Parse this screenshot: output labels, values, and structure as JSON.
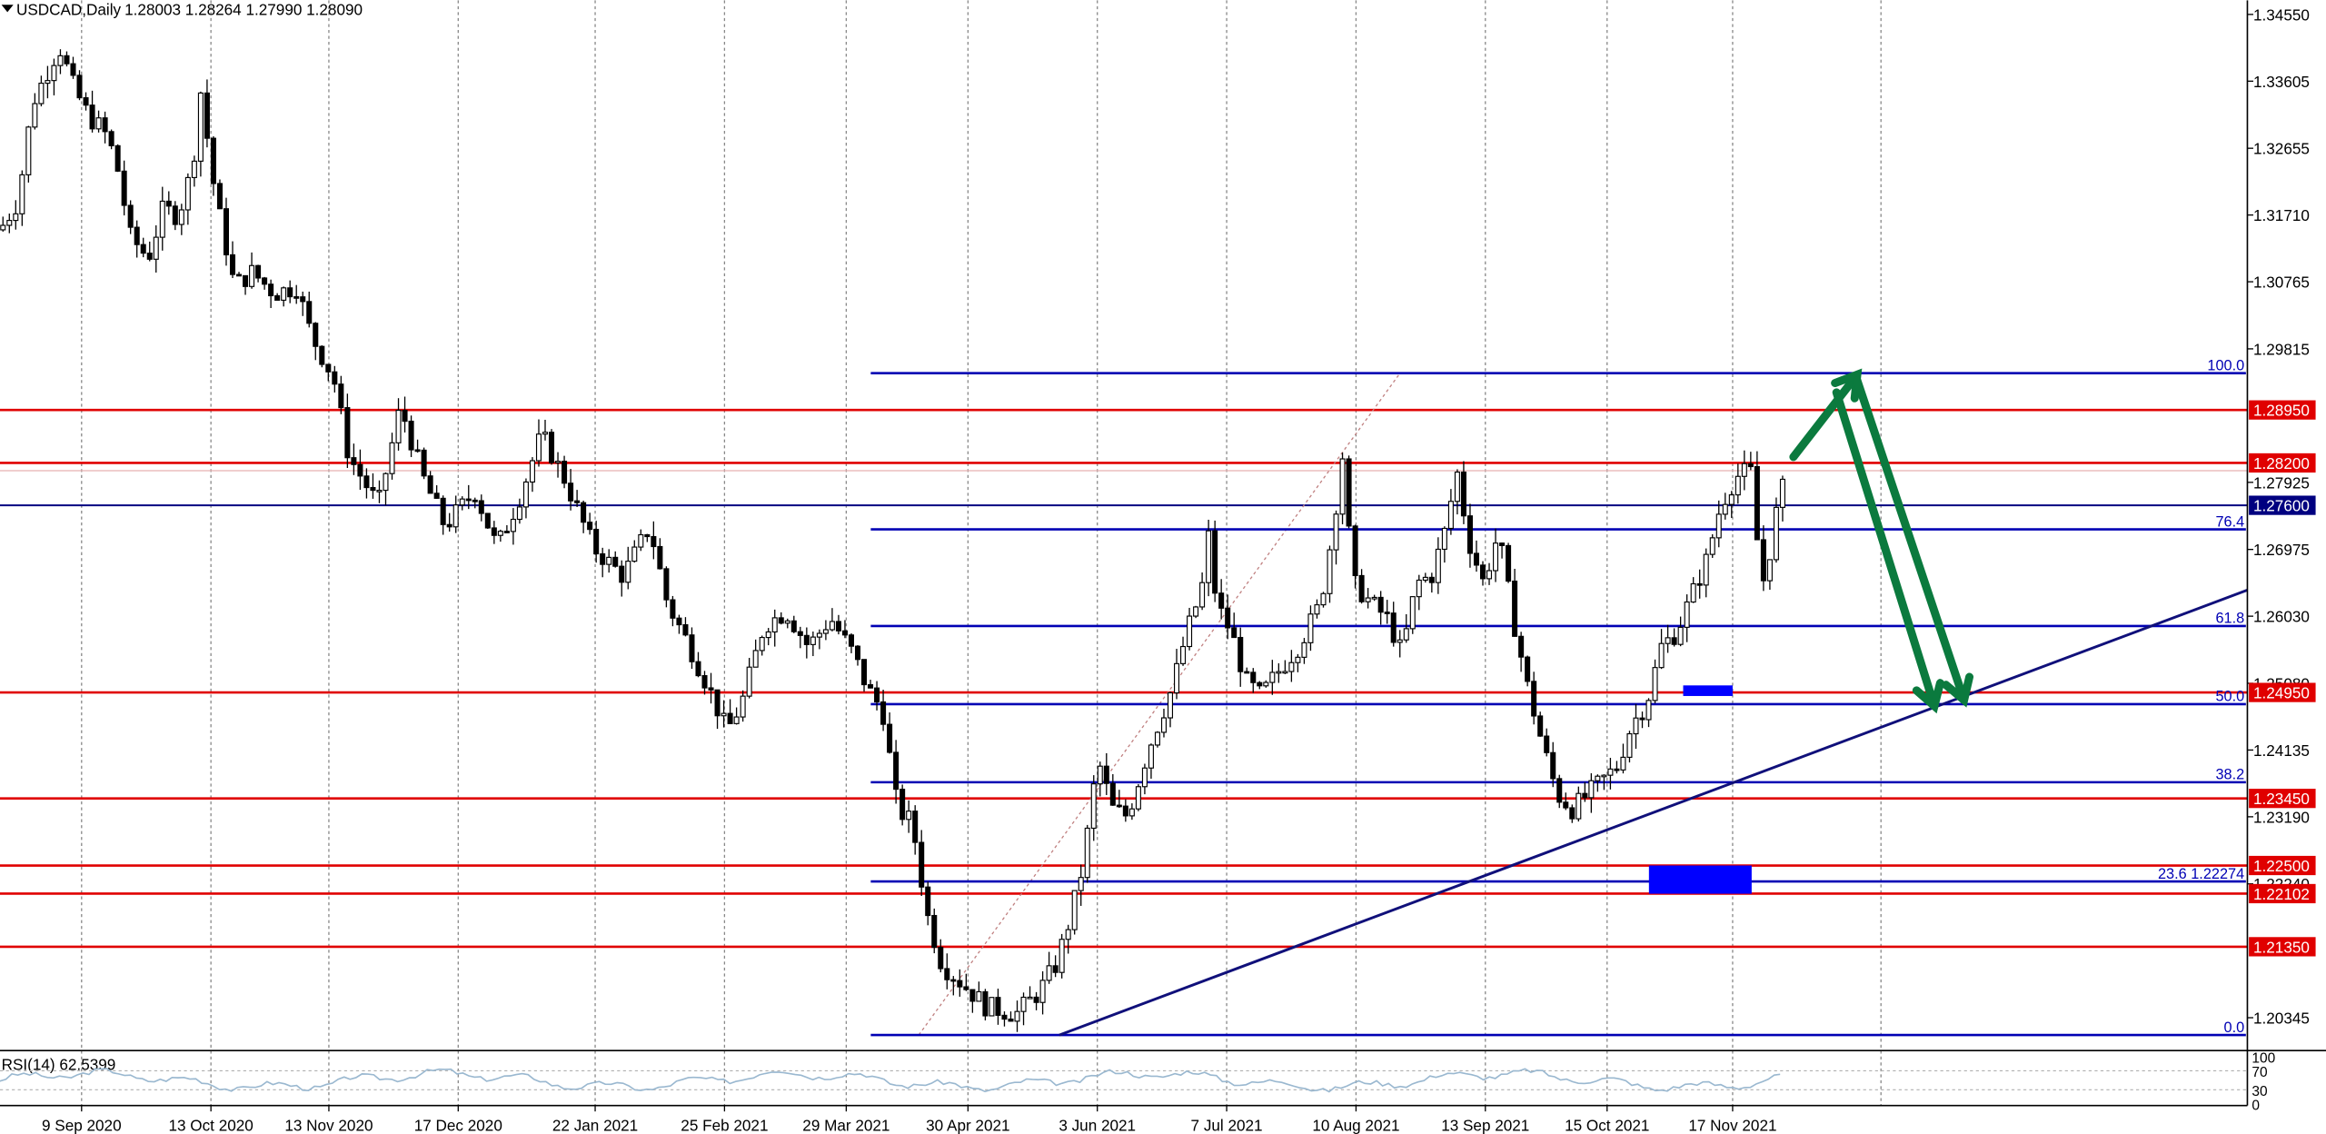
{
  "header": {
    "dropdown_icon": "triangle-down-icon",
    "symbol": "USDCAD,Daily",
    "ohlc": "1.28003 1.28264 1.27990 1.28090"
  },
  "rsi": {
    "label": "RSI(14) 62.5399",
    "levels": [
      "100",
      "70",
      "30",
      "0"
    ],
    "level_values": [
      100,
      70,
      30,
      0
    ],
    "current": 62.54
  },
  "colors": {
    "red_level": "#e00000",
    "blue_level": "#0000b4",
    "navy": "#000080",
    "trendline": "#10107a",
    "arrow_green": "#0b7a3e",
    "rsi_line": "#9ab8d0",
    "candle": "#000000",
    "zone_blue": "#0000ff",
    "grid": "#888888",
    "fib_diag": "#c08080"
  },
  "chart_data": {
    "type": "candlestick",
    "symbol": "USDCAD",
    "timeframe": "Daily",
    "ylim": [
      1.199,
      1.3475
    ],
    "y_ticks": [
      "1.34550",
      "1.33605",
      "1.32655",
      "1.31710",
      "1.30765",
      "1.29815",
      "1.27925",
      "1.26975",
      "1.26030",
      "1.25080",
      "1.24135",
      "1.23190",
      "1.22240",
      "1.20345"
    ],
    "x_dates": [
      "9 Sep 2020",
      "13 Oct 2020",
      "13 Nov 2020",
      "17 Dec 2020",
      "22 Jan 2021",
      "25 Feb 2021",
      "29 Mar 2021",
      "30 Apr 2021",
      "3 Jun 2021",
      "7 Jul 2021",
      "10 Aug 2021",
      "13 Sep 2021",
      "15 Oct 2021",
      "17 Nov 2021"
    ],
    "horizontal_levels_red": [
      {
        "price": 1.2895,
        "label": "1.28950"
      },
      {
        "price": 1.282,
        "label": "1.28200"
      },
      {
        "price": 1.2495,
        "label": "1.24950"
      },
      {
        "price": 1.2345,
        "label": "1.23450"
      },
      {
        "price": 1.225,
        "label": "1.22500"
      },
      {
        "price": 1.22102,
        "label": "1.22102"
      },
      {
        "price": 1.2135,
        "label": "1.21350"
      }
    ],
    "horizontal_levels_navy": [
      {
        "price": 1.276,
        "label": "1.27600"
      }
    ],
    "fibonacci": {
      "start_date": "5 May 2021",
      "start_price": 1.201,
      "end_date": "20 Aug 2021",
      "end_price": 1.2947,
      "levels": [
        {
          "ratio": "100.0",
          "price": 1.2947
        },
        {
          "ratio": "76.4",
          "price": 1.27259
        },
        {
          "ratio": "61.8",
          "price": 1.25891
        },
        {
          "ratio": "50.0",
          "price": 1.24785
        },
        {
          "ratio": "38.2",
          "price": 1.23679
        },
        {
          "ratio": "23.6 1.22274",
          "price": 1.22274
        },
        {
          "ratio": "0.0",
          "price": 1.201
        }
      ]
    },
    "trendline": {
      "from": {
        "date": "24 May 2021",
        "price": 1.201
      },
      "to_price_at_right_edge": 1.264
    },
    "zones": [
      {
        "from_date": "26 Oct 2021",
        "to_date": "22 Nov 2021",
        "top": 1.225,
        "bottom": 1.221
      },
      {
        "from_date": "4 Nov 2021",
        "to_date": "17 Nov 2021",
        "top": 1.2505,
        "bottom": 1.249
      }
    ],
    "projection_arrows": [
      {
        "from_price": 1.282,
        "to_price": 1.2945
      },
      {
        "from_price": 1.2945,
        "to_price": 1.248
      },
      {
        "from_price": 1.2945,
        "to_price": 1.248
      }
    ],
    "candle_anchors": [
      [
        0,
        1.315
      ],
      [
        12,
        1.319
      ],
      [
        22,
        1.333
      ],
      [
        40,
        1.341
      ],
      [
        50,
        1.335
      ],
      [
        60,
        1.331
      ],
      [
        70,
        1.329
      ],
      [
        78,
        1.325
      ],
      [
        88,
        1.314
      ],
      [
        100,
        1.311
      ],
      [
        110,
        1.318
      ],
      [
        120,
        1.317
      ],
      [
        130,
        1.324
      ],
      [
        135,
        1.335
      ],
      [
        145,
        1.32
      ],
      [
        158,
        1.307
      ],
      [
        170,
        1.309
      ],
      [
        185,
        1.306
      ],
      [
        200,
        1.307
      ],
      [
        210,
        1.3
      ],
      [
        225,
        1.294
      ],
      [
        235,
        1.283
      ],
      [
        255,
        1.276
      ],
      [
        270,
        1.29
      ],
      [
        285,
        1.28
      ],
      [
        300,
        1.273
      ],
      [
        320,
        1.278
      ],
      [
        335,
        1.27
      ],
      [
        350,
        1.277
      ],
      [
        365,
        1.286
      ],
      [
        380,
        1.28
      ],
      [
        400,
        1.27
      ],
      [
        420,
        1.266
      ],
      [
        438,
        1.273
      ],
      [
        450,
        1.262
      ],
      [
        465,
        1.256
      ],
      [
        478,
        1.25
      ],
      [
        490,
        1.244
      ],
      [
        500,
        1.248
      ],
      [
        515,
        1.259
      ],
      [
        530,
        1.261
      ],
      [
        545,
        1.256
      ],
      [
        560,
        1.26
      ],
      [
        575,
        1.255
      ],
      [
        585,
        1.25
      ],
      [
        595,
        1.247
      ],
      [
        605,
        1.233
      ],
      [
        615,
        1.231
      ],
      [
        625,
        1.218
      ],
      [
        635,
        1.211
      ],
      [
        650,
        1.208
      ],
      [
        665,
        1.205
      ],
      [
        685,
        1.204
      ],
      [
        700,
        1.207
      ],
      [
        712,
        1.211
      ],
      [
        722,
        1.218
      ],
      [
        730,
        1.225
      ],
      [
        740,
        1.24
      ],
      [
        750,
        1.233
      ],
      [
        760,
        1.232
      ],
      [
        775,
        1.242
      ],
      [
        790,
        1.25
      ],
      [
        800,
        1.258
      ],
      [
        810,
        1.264
      ],
      [
        815,
        1.272
      ],
      [
        820,
        1.262
      ],
      [
        830,
        1.258
      ],
      [
        840,
        1.251
      ],
      [
        850,
        1.249
      ],
      [
        860,
        1.252
      ],
      [
        875,
        1.256
      ],
      [
        890,
        1.262
      ],
      [
        898,
        1.272
      ],
      [
        905,
        1.283
      ],
      [
        912,
        1.265
      ],
      [
        925,
        1.262
      ],
      [
        935,
        1.26
      ],
      [
        945,
        1.255
      ],
      [
        955,
        1.265
      ],
      [
        965,
        1.266
      ],
      [
        975,
        1.273
      ],
      [
        982,
        1.281
      ],
      [
        990,
        1.271
      ],
      [
        1000,
        1.265
      ],
      [
        1010,
        1.272
      ],
      [
        1020,
        1.26
      ],
      [
        1030,
        1.25
      ],
      [
        1040,
        1.242
      ],
      [
        1050,
        1.235
      ],
      [
        1060,
        1.233
      ],
      [
        1070,
        1.235
      ],
      [
        1080,
        1.237
      ],
      [
        1090,
        1.239
      ],
      [
        1100,
        1.245
      ],
      [
        1110,
        1.248
      ],
      [
        1120,
        1.256
      ],
      [
        1130,
        1.258
      ],
      [
        1140,
        1.263
      ],
      [
        1150,
        1.268
      ],
      [
        1160,
        1.276
      ],
      [
        1170,
        1.28
      ],
      [
        1180,
        1.281
      ],
      [
        1185,
        1.27
      ],
      [
        1190,
        1.264
      ],
      [
        1195,
        1.273
      ],
      [
        1205,
        1.2809
      ]
    ]
  }
}
